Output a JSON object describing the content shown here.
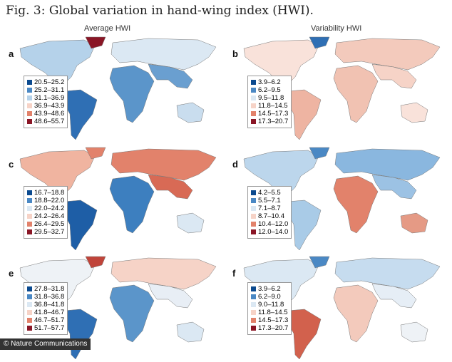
{
  "title": "Fig. 3: Global variation in hand-wing index (HWI).",
  "columns": [
    "Average HWI",
    "Variability HWI"
  ],
  "panels": [
    {
      "label": "a",
      "legend": [
        "20.5–25.2",
        "25.2–31.1",
        "31.1–36.9",
        "36.9–43.9",
        "43.9–48.6",
        "48.6–55.7"
      ],
      "scale": [
        "#0b4a8f",
        "#4a88c4",
        "#b5d2ea",
        "#f6d3c7",
        "#e2826b",
        "#8a1626"
      ],
      "regions": {
        "na": "#b5d2ea",
        "gr": "#8a1626",
        "sa": "#2f6fb4",
        "eu": "#dbe8f3",
        "af": "#5b95ca",
        "as": "#6a9fd0",
        "au": "#c9ddee"
      }
    },
    {
      "label": "b",
      "legend": [
        "3.9–6.2",
        "6.2–9.5",
        "9.5–11.8",
        "11.8–14.5",
        "14.5–17.3",
        "17.3–20.7"
      ],
      "scale": [
        "#0b4a8f",
        "#4a88c4",
        "#dbe8f3",
        "#f6d3c7",
        "#e2826b",
        "#8a1626"
      ],
      "regions": {
        "na": "#f9e2da",
        "gr": "#2f6fb4",
        "sa": "#eeb4a2",
        "eu": "#f3cabc",
        "af": "#f1c2b2",
        "as": "#f6d3c7",
        "au": "#f9e2da"
      }
    },
    {
      "label": "c",
      "legend": [
        "16.7–18.8",
        "18.8–22.0",
        "22.0–24.2",
        "24.2–26.4",
        "26.4–29.5",
        "29.5–32.7"
      ],
      "scale": [
        "#0b4a8f",
        "#4a88c4",
        "#dbe8f3",
        "#f6d3c7",
        "#e2826b",
        "#8a1626"
      ],
      "regions": {
        "na": "#f0b4a0",
        "gr": "#e2826b",
        "sa": "#1e5ea6",
        "eu": "#e2826b",
        "af": "#3d7fbf",
        "as": "#d86a55",
        "au": "#dbe8f3"
      }
    },
    {
      "label": "d",
      "legend": [
        "4.2–5.5",
        "5.5–7.1",
        "7.1–8.7",
        "8.7–10.4",
        "10.4–12.0",
        "12.0–14.0"
      ],
      "scale": [
        "#0b4a8f",
        "#4a88c4",
        "#dbe8f3",
        "#f6d3c7",
        "#e2826b",
        "#8a1626"
      ],
      "regions": {
        "na": "#bcd6ec",
        "gr": "#4a88c4",
        "sa": "#a9cbe7",
        "eu": "#8ab7df",
        "af": "#e2826b",
        "as": "#9cc2e4",
        "au": "#e59a85"
      }
    },
    {
      "label": "e",
      "legend": [
        "27.8–31.8",
        "31.8–36.8",
        "36.8–41.8",
        "41.8–46.7",
        "46.7–51.7",
        "51.7–57.7"
      ],
      "scale": [
        "#0b4a8f",
        "#4a88c4",
        "#dbe8f3",
        "#f6d3c7",
        "#e2826b",
        "#8a1626"
      ],
      "regions": {
        "na": "#eef2f6",
        "gr": "#c0443a",
        "sa": "#2f6fb4",
        "eu": "#f6d3c7",
        "af": "#5b95ca",
        "as": "#e8eef5",
        "au": "#dbe8f3"
      }
    },
    {
      "label": "f",
      "legend": [
        "3.9–6.2",
        "6.2–9.0",
        "9.0–11.8",
        "11.8–14.5",
        "14.5–17.3",
        "17.3–20.7"
      ],
      "scale": [
        "#0b4a8f",
        "#4a88c4",
        "#dbe8f3",
        "#f6d3c7",
        "#e2826b",
        "#8a1626"
      ],
      "regions": {
        "na": "#dbe8f3",
        "gr": "#4a88c4",
        "sa": "#d2614d",
        "eu": "#c6dcef",
        "af": "#f3cabc",
        "as": "#e6eef6",
        "au": "#eef2f6"
      }
    }
  ],
  "credit": "© Nature Communications"
}
